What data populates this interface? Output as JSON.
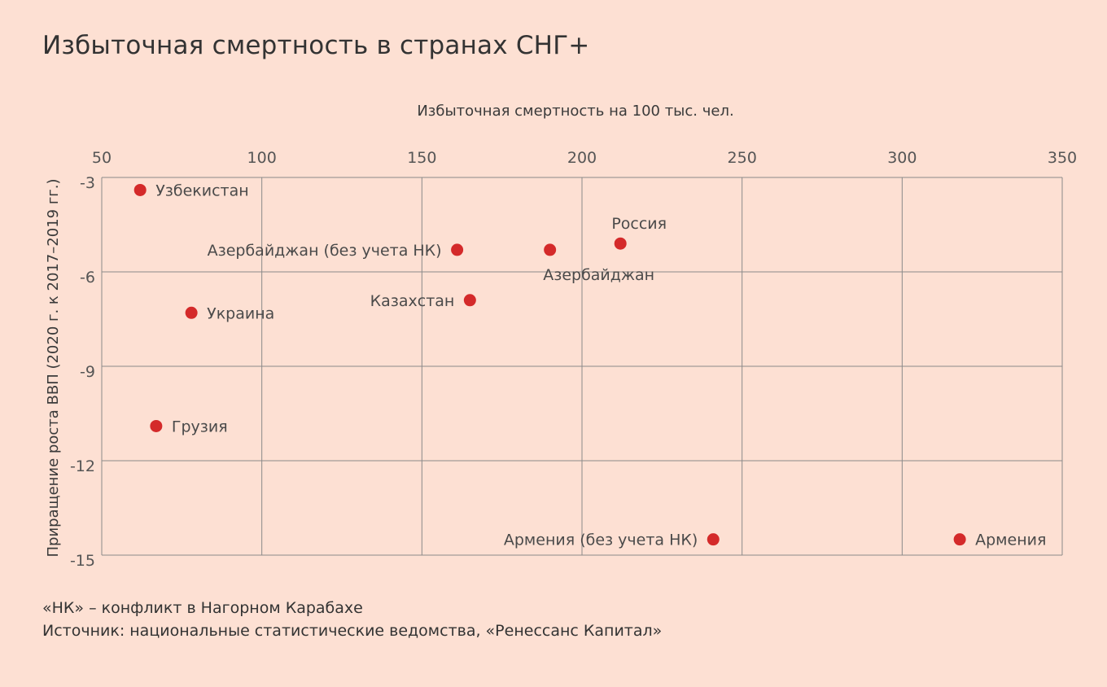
{
  "title": "Избыточная смертность в странах СНГ+",
  "footnote": "«НК» – конфликт в Нагорном Карабахе",
  "source": "Источник: национальные статистические ведомства, «Ренессанс Капитал»",
  "colors": {
    "background": "#fde0d3",
    "point": "#d42a2a",
    "grid": "#8a8a8a"
  },
  "chart_data": {
    "type": "scatter",
    "xlabel": "Избыточная смертность на 100 тыс. чел.",
    "ylabel": "Приращение роста ВВП (2020 г. к 2017–2019 гг.)",
    "x_axis_position": "top",
    "xlim": [
      50,
      350
    ],
    "ylim": [
      -15,
      -3
    ],
    "xticks": [
      50,
      100,
      150,
      200,
      250,
      300,
      350
    ],
    "yticks": [
      -3,
      -6,
      -9,
      -12,
      -15
    ],
    "grid": true,
    "points": [
      {
        "label": "Узбекистан",
        "x": 62,
        "y": -3.4,
        "label_pos": "right"
      },
      {
        "label": "Азербайджан (без учета НК)",
        "x": 161,
        "y": -5.3,
        "label_pos": "left"
      },
      {
        "label": "Азербайджан",
        "x": 190,
        "y": -5.3,
        "label_pos": "below"
      },
      {
        "label": "Россия",
        "x": 212,
        "y": -5.1,
        "label_pos": "above"
      },
      {
        "label": "Казахстан",
        "x": 165,
        "y": -6.9,
        "label_pos": "left"
      },
      {
        "label": "Украина",
        "x": 78,
        "y": -7.3,
        "label_pos": "right"
      },
      {
        "label": "Грузия",
        "x": 67,
        "y": -10.9,
        "label_pos": "right"
      },
      {
        "label": "Армения (без учета НК)",
        "x": 241,
        "y": -14.5,
        "label_pos": "left"
      },
      {
        "label": "Армения",
        "x": 318,
        "y": -14.5,
        "label_pos": "right"
      }
    ]
  }
}
